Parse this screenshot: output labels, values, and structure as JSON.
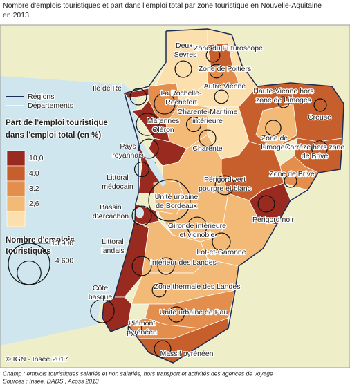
{
  "title": [
    "Nombre d'emplois touristiques et part dans l'emploi total par zone touristique en Nouvelle-Aquitaine",
    "en 2013"
  ],
  "legend": {
    "regions": "Régions",
    "departements": "Départements",
    "share_title": [
      "Part de l'emploi touristique",
      "dans l'emploi total (en %)"
    ],
    "colors": [
      "#992a20",
      "#c75f2c",
      "#e38e4d",
      "#f2b977",
      "#fbe0ad"
    ],
    "breaks": [
      "10,0",
      "4,0",
      "3,2",
      "2,6"
    ],
    "size_title": [
      "Nombre d'emplois",
      "touristiques"
    ],
    "sizes": [
      {
        "value": 13900,
        "label": "13 900"
      },
      {
        "value": 4600,
        "label": "4 600"
      }
    ]
  },
  "zones": [
    {
      "lines": [
        "Deux-",
        "Sèvres"
      ],
      "color": "#fbe0ad",
      "jobs": 2200
    },
    {
      "lines": [
        "Zone du Futuroscope"
      ],
      "color": "#c75f2c",
      "jobs": 1500
    },
    {
      "lines": [
        "Zone de Poitiers"
      ],
      "color": "#e38e4d",
      "jobs": 1500
    },
    {
      "lines": [
        "Autre Vienne"
      ],
      "color": "#fbe0ad",
      "jobs": 1500
    },
    {
      "lines": [
        "Haute-Vienne hors",
        "zone de Limoges"
      ],
      "color": "#c75f2c",
      "jobs": 1000
    },
    {
      "lines": [
        "Zone de",
        "Limoges"
      ],
      "color": "#f2b977",
      "jobs": 1900
    },
    {
      "lines": [
        "Creuse"
      ],
      "color": "#c75f2c",
      "jobs": 1250
    },
    {
      "lines": [
        "Corrèze hors zone",
        "de Brive"
      ],
      "color": "#c75f2c",
      "jobs": 1900
    },
    {
      "lines": [
        "Zone de Brive"
      ],
      "color": "#e38e4d",
      "jobs": 1250
    },
    {
      "lines": [
        "La Rochelle-",
        "Rochefort"
      ],
      "color": "#e38e4d",
      "jobs": 3500
    },
    {
      "lines": [
        "Ile de Ré"
      ],
      "color": "#992a20",
      "jobs": 2200
    },
    {
      "lines": [
        "Marennes",
        "Oléron"
      ],
      "color": "#992a20",
      "jobs": 4000
    },
    {
      "lines": [
        "Pays",
        "royannais"
      ],
      "color": "#992a20",
      "jobs": 3000
    },
    {
      "lines": [
        "Charente-Maritime",
        "intérieure"
      ],
      "color": "#f2b977",
      "jobs": 1700
    },
    {
      "lines": [
        "Charente"
      ],
      "color": "#fbe0ad",
      "jobs": 2200
    },
    {
      "lines": [
        "Périgord vert",
        "pourpre et blanc"
      ],
      "color": "#c75f2c",
      "jobs": 3000
    },
    {
      "lines": [
        "Périgord noir"
      ],
      "color": "#992a20",
      "jobs": 2200
    },
    {
      "lines": [
        "Littoral",
        "médocain"
      ],
      "color": "#992a20",
      "jobs": 1700
    },
    {
      "lines": [
        "Unité urbaine",
        "de Bordeaux"
      ],
      "color": "#f2b977",
      "jobs": 13900
    },
    {
      "lines": [
        "Bassin",
        "d'Arcachon"
      ],
      "color": "#992a20",
      "jobs": 3000
    },
    {
      "lines": [
        "Gironde intérieure",
        "et vignoble"
      ],
      "color": "#f2b977",
      "jobs": 3000
    },
    {
      "lines": [
        "Lot-et-Garonne"
      ],
      "color": "#f2b977",
      "jobs": 2600
    },
    {
      "lines": [
        "Littoral",
        "landais"
      ],
      "color": "#992a20",
      "jobs": 3000
    },
    {
      "lines": [
        "Intérieur des Landes"
      ],
      "color": "#f2b977",
      "jobs": 2200
    },
    {
      "lines": [
        "Zone thermale des Landes"
      ],
      "color": "#f2b977",
      "jobs": 1500
    },
    {
      "lines": [
        "Côte",
        "basque"
      ],
      "color": "#992a20",
      "jobs": 4500
    },
    {
      "lines": [
        "Unité urbaine de Pau"
      ],
      "color": "#e38e4d",
      "jobs": 1900
    },
    {
      "lines": [
        "Piémont",
        "pyrénéen"
      ],
      "color": "#e38e4d",
      "jobs": 1500
    },
    {
      "lines": [
        "Massif pyrénéen"
      ],
      "color": "#c75f2c",
      "jobs": 2200
    }
  ],
  "copyright": "© IGN - Insee 2017",
  "footer": [
    "Champ : emplois touristiques salariés et non salariés, hors transport et activités des agences de voyage",
    "Sources : Insee, DADS ; Acoss 2013"
  ]
}
